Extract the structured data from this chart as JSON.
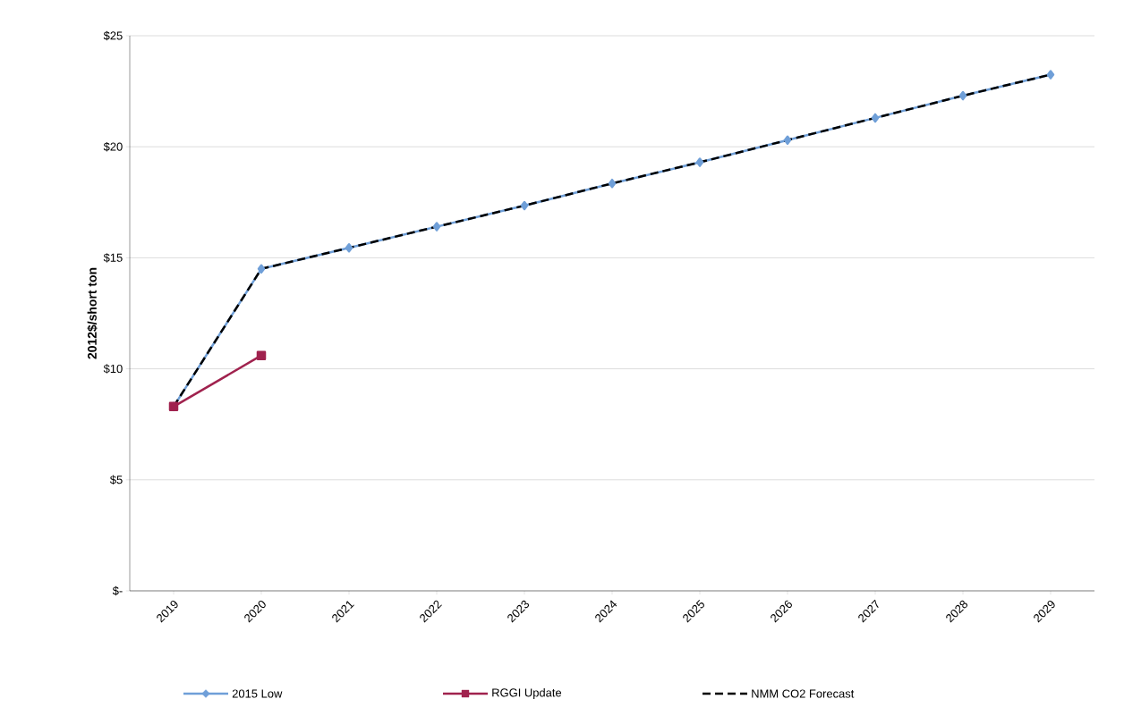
{
  "chart_data": {
    "type": "line",
    "ylabel": "2012$/short ton",
    "categories": [
      "2019",
      "2020",
      "2021",
      "2022",
      "2023",
      "2024",
      "2025",
      "2026",
      "2027",
      "2028",
      "2029"
    ],
    "series": [
      {
        "name": "2015 Low",
        "color": "#6f9fd8",
        "marker": "diamond",
        "line_style": "solid",
        "values": [
          8.3,
          14.5,
          15.45,
          16.4,
          17.35,
          18.35,
          19.3,
          20.3,
          21.3,
          22.3,
          23.25
        ]
      },
      {
        "name": "RGGI Update",
        "color": "#a0224e",
        "marker": "square",
        "line_style": "solid",
        "values": [
          8.3,
          10.6,
          null,
          null,
          null,
          null,
          null,
          null,
          null,
          null,
          null
        ]
      },
      {
        "name": "NMM CO2 Forecast",
        "color": "#000000",
        "marker": "none",
        "line_style": "dashed",
        "values": [
          8.3,
          14.5,
          15.45,
          16.4,
          17.35,
          18.35,
          19.3,
          20.3,
          21.3,
          22.3,
          23.25
        ]
      }
    ],
    "ylim": [
      0,
      25
    ],
    "yticks": [
      {
        "value": 0,
        "label": "$-"
      },
      {
        "value": 5,
        "label": "$5"
      },
      {
        "value": 10,
        "label": "$10"
      },
      {
        "value": 15,
        "label": "$15"
      },
      {
        "value": 20,
        "label": "$20"
      },
      {
        "value": 25,
        "label": "$25"
      }
    ],
    "grid": "y",
    "legend": "bottom"
  }
}
